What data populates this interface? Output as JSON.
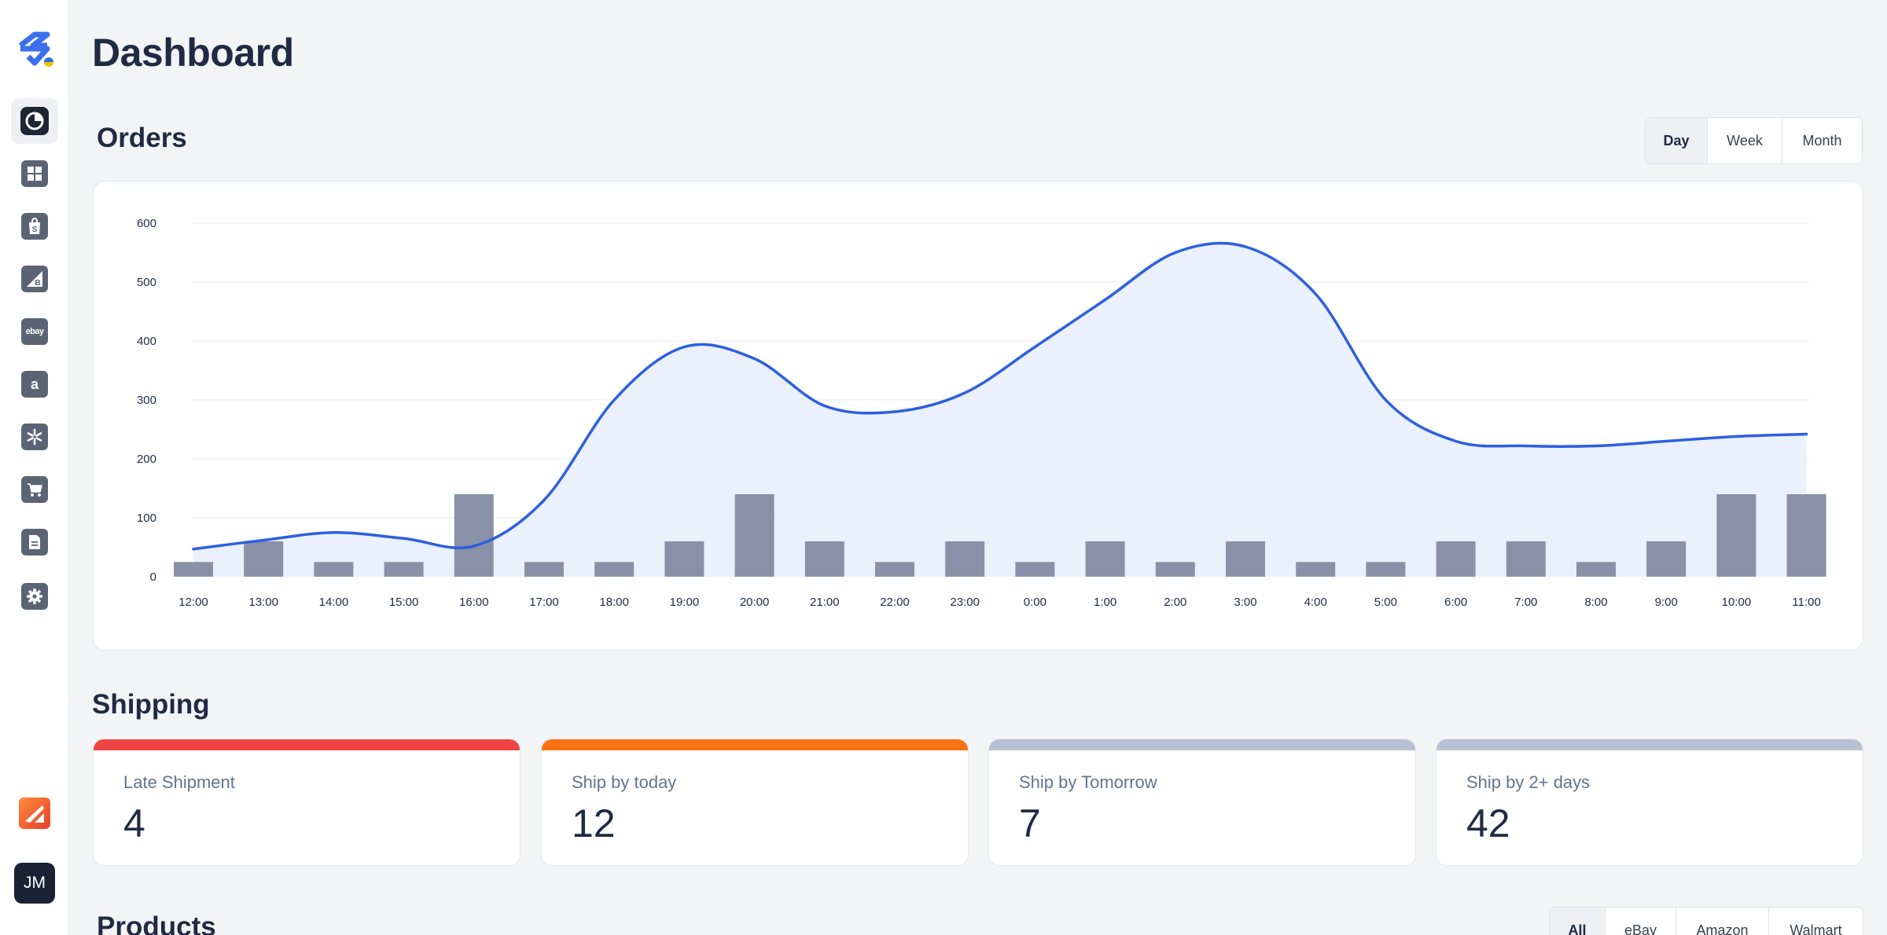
{
  "page": {
    "title": "Dashboard"
  },
  "sidebar": {
    "items": [
      {
        "icon": "pie-chart-icon",
        "active": true
      },
      {
        "icon": "box-icon"
      },
      {
        "icon": "shopify-icon"
      },
      {
        "icon": "bigcommerce-icon"
      },
      {
        "icon": "ebay-icon",
        "label": "ebay"
      },
      {
        "icon": "amazon-icon",
        "label": "a"
      },
      {
        "icon": "walmart-icon"
      },
      {
        "icon": "cart-icon"
      },
      {
        "icon": "document-icon"
      },
      {
        "icon": "gear-icon"
      }
    ],
    "brand_icon": "zoho-icon",
    "avatar_initials": "JM"
  },
  "orders": {
    "title": "Orders",
    "periods": [
      "Day",
      "Week",
      "Month"
    ],
    "selected": "Day"
  },
  "chart_data": {
    "type": "bar",
    "categories": [
      "12:00",
      "13:00",
      "14:00",
      "15:00",
      "16:00",
      "17:00",
      "18:00",
      "19:00",
      "20:00",
      "21:00",
      "22:00",
      "23:00",
      "0:00",
      "1:00",
      "2:00",
      "3:00",
      "4:00",
      "5:00",
      "6:00",
      "7:00",
      "8:00",
      "9:00",
      "10:00",
      "11:00"
    ],
    "series": [
      {
        "kind": "bar",
        "values": [
          25,
          60,
          25,
          25,
          140,
          25,
          25,
          60,
          140,
          60,
          25,
          60,
          25,
          60,
          25,
          60,
          25,
          25,
          60,
          60,
          25,
          60,
          140,
          140
        ]
      },
      {
        "kind": "area-line",
        "values": [
          47,
          62,
          75,
          65,
          52,
          130,
          300,
          390,
          370,
          290,
          280,
          312,
          390,
          470,
          550,
          560,
          480,
          300,
          230,
          222,
          222,
          230,
          238,
          242
        ]
      }
    ],
    "ylim": [
      0,
      600
    ],
    "yticks": [
      0,
      100,
      200,
      300,
      400,
      500,
      600
    ],
    "grid": true,
    "colors": {
      "bar": "#8891a8",
      "line": "#2d5fe0",
      "area": "#e8eefc"
    }
  },
  "shipping": {
    "title": "Shipping",
    "cards": [
      {
        "label": "Late Shipment",
        "value": "4",
        "color": "#ef4444"
      },
      {
        "label": "Ship by today",
        "value": "12",
        "color": "#f97316"
      },
      {
        "label": "Ship by Tomorrow",
        "value": "7",
        "color": "#b8c1d6"
      },
      {
        "label": "Ship by 2+ days",
        "value": "42",
        "color": "#b8c1d6"
      }
    ]
  },
  "products": {
    "title": "Products",
    "filters": [
      "All",
      "eBay",
      "Amazon",
      "Walmart"
    ],
    "selected": "All"
  }
}
